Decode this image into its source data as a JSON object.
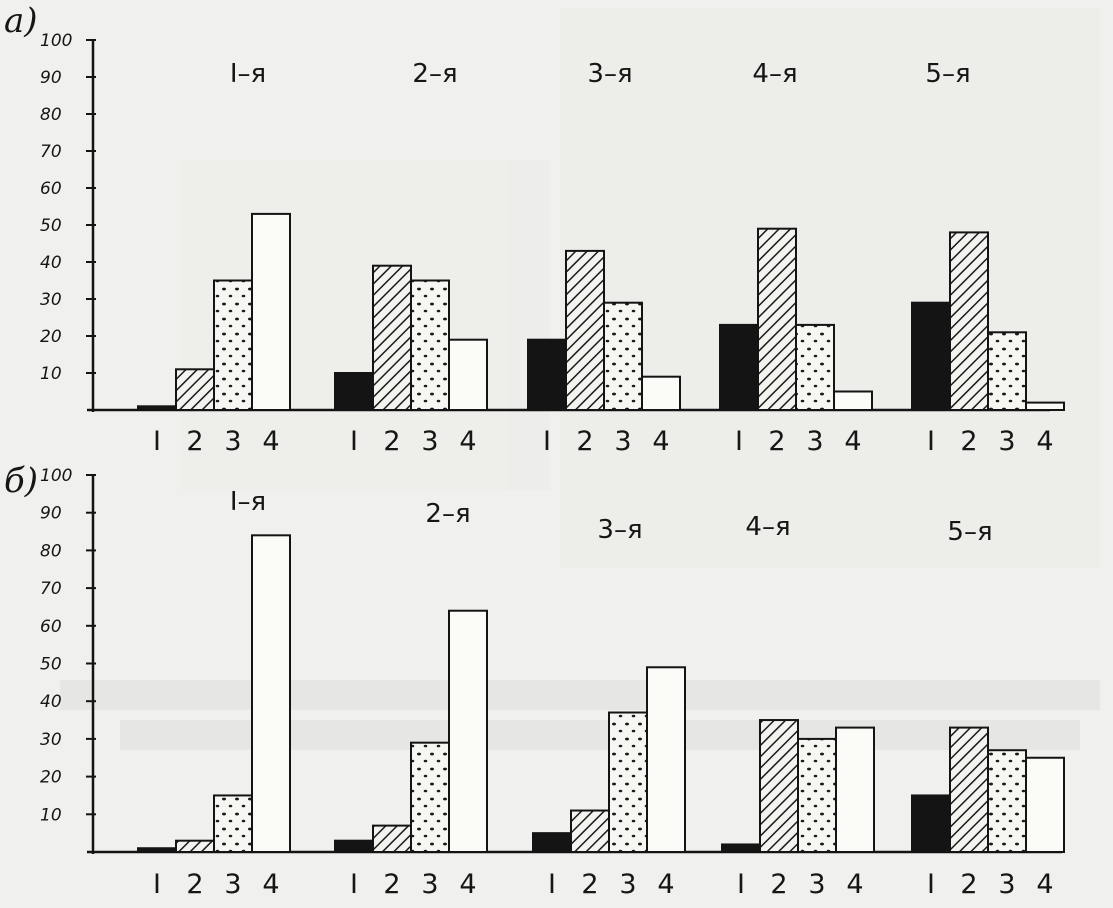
{
  "chart_data": [
    {
      "panel": "а)",
      "type": "bar",
      "categories": [
        "1-я",
        "2-я",
        "3-я",
        "4-я",
        "5-я"
      ],
      "category_labels": [
        "Ι–я",
        "2–я",
        "3–я",
        "4–я",
        "5–я"
      ],
      "bar_labels": [
        "I",
        "2",
        "3",
        "4"
      ],
      "yticks": [
        "100",
        "90",
        "80",
        "70",
        "60",
        "50",
        "40",
        "30",
        "20",
        "10"
      ],
      "ylim": [
        0,
        100
      ],
      "series": [
        {
          "pattern": "solid",
          "values": [
            1,
            10,
            19,
            23,
            29
          ]
        },
        {
          "pattern": "hatched",
          "values": [
            11,
            39,
            43,
            49,
            48
          ]
        },
        {
          "pattern": "dotted",
          "values": [
            35,
            35,
            29,
            23,
            21
          ]
        },
        {
          "pattern": "empty",
          "values": [
            53,
            19,
            9,
            5,
            2
          ]
        }
      ]
    },
    {
      "panel": "б)",
      "type": "bar",
      "categories": [
        "1-я",
        "2-я",
        "3-я",
        "4-я",
        "5-я"
      ],
      "category_labels": [
        "Ι–я",
        "2–я",
        "3–я",
        "4–я",
        "5–я"
      ],
      "bar_labels": [
        "I",
        "2",
        "3",
        "4"
      ],
      "yticks": [
        "100",
        "90",
        "80",
        "70",
        "60",
        "50",
        "40",
        "30",
        "20",
        "10"
      ],
      "ylim": [
        0,
        100
      ],
      "series": [
        {
          "pattern": "solid",
          "values": [
            1,
            3,
            5,
            2,
            15
          ]
        },
        {
          "pattern": "hatched",
          "values": [
            3,
            7,
            11,
            35,
            33
          ]
        },
        {
          "pattern": "dotted",
          "values": [
            15,
            29,
            37,
            30,
            27
          ]
        },
        {
          "pattern": "empty",
          "values": [
            84,
            64,
            49,
            33,
            25
          ]
        }
      ]
    }
  ]
}
